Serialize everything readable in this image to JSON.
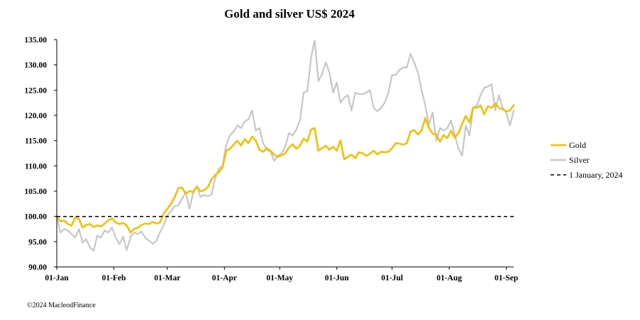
{
  "chart_data": {
    "type": "line",
    "title": "Gold and silver  US$ 2024",
    "xlabel": "",
    "ylabel": "",
    "ylim": [
      90,
      135
    ],
    "yticks": [
      90,
      95,
      100,
      105,
      110,
      115,
      120,
      125,
      130,
      135
    ],
    "ytick_labels": [
      "90.00",
      "95.00",
      "100.00",
      "105.00",
      "110.00",
      "115.00",
      "120.00",
      "125.00",
      "130.00",
      "135.00"
    ],
    "xlim_days": [
      0,
      248
    ],
    "xticks": [
      {
        "day": 0,
        "label": "01-Jan"
      },
      {
        "day": 31,
        "label": "01-Feb"
      },
      {
        "day": 60,
        "label": "01-Mar"
      },
      {
        "day": 91,
        "label": "01-Apr"
      },
      {
        "day": 121,
        "label": "01-May"
      },
      {
        "day": 152,
        "label": "01-Jun"
      },
      {
        "day": 182,
        "label": "01-Jul"
      },
      {
        "day": 213,
        "label": "01-Aug"
      },
      {
        "day": 244,
        "label": "01-Sep"
      }
    ],
    "legend_position": "right",
    "series": [
      {
        "name": "Gold",
        "color": "#f5be00",
        "dashed": false,
        "points": [
          [
            0,
            100
          ],
          [
            2,
            99
          ],
          [
            4,
            99.2
          ],
          [
            6,
            98.5
          ],
          [
            8,
            98.2
          ],
          [
            10,
            99.8
          ],
          [
            12,
            99.5
          ],
          [
            14,
            97.8
          ],
          [
            16,
            98.3
          ],
          [
            18,
            98.5
          ],
          [
            20,
            97.9
          ],
          [
            22,
            98.2
          ],
          [
            24,
            98.0
          ],
          [
            26,
            98.6
          ],
          [
            28,
            99.2
          ],
          [
            30,
            99.6
          ],
          [
            32,
            98.8
          ],
          [
            34,
            98.5
          ],
          [
            36,
            98.7
          ],
          [
            38,
            98.2
          ],
          [
            40,
            96.8
          ],
          [
            42,
            97.5
          ],
          [
            44,
            97.8
          ],
          [
            46,
            98.3
          ],
          [
            48,
            98.6
          ],
          [
            50,
            98.5
          ],
          [
            52,
            98.9
          ],
          [
            54,
            98.6
          ],
          [
            56,
            98.8
          ],
          [
            58,
            100.5
          ],
          [
            60,
            101.5
          ],
          [
            62,
            102.5
          ],
          [
            64,
            103.8
          ],
          [
            66,
            105.6
          ],
          [
            68,
            105.7
          ],
          [
            70,
            104.5
          ],
          [
            72,
            105.0
          ],
          [
            74,
            104.8
          ],
          [
            76,
            105.9
          ],
          [
            78,
            105.0
          ],
          [
            80,
            105.2
          ],
          [
            82,
            105.8
          ],
          [
            84,
            107.3
          ],
          [
            86,
            108.2
          ],
          [
            88,
            108.8
          ],
          [
            90,
            109.7
          ],
          [
            92,
            113.0
          ],
          [
            94,
            113.4
          ],
          [
            96,
            114.2
          ],
          [
            98,
            115.0
          ],
          [
            100,
            114.0
          ],
          [
            102,
            115.3
          ],
          [
            104,
            114.5
          ],
          [
            106,
            115.8
          ],
          [
            108,
            115.0
          ],
          [
            110,
            113.2
          ],
          [
            112,
            112.8
          ],
          [
            114,
            113.5
          ],
          [
            116,
            113.0
          ],
          [
            118,
            112.2
          ],
          [
            120,
            111.8
          ],
          [
            122,
            112.1
          ],
          [
            124,
            112.5
          ],
          [
            126,
            113.6
          ],
          [
            128,
            114.3
          ],
          [
            130,
            113.4
          ],
          [
            132,
            114.0
          ],
          [
            134,
            115.4
          ],
          [
            136,
            114.8
          ],
          [
            138,
            117.2
          ],
          [
            140,
            117.5
          ],
          [
            142,
            113.0
          ],
          [
            144,
            113.5
          ],
          [
            146,
            114.0
          ],
          [
            148,
            113.2
          ],
          [
            150,
            113.8
          ],
          [
            152,
            113.0
          ],
          [
            154,
            115.1
          ],
          [
            156,
            111.3
          ],
          [
            158,
            111.8
          ],
          [
            160,
            112.2
          ],
          [
            162,
            111.5
          ],
          [
            164,
            112.7
          ],
          [
            166,
            112.5
          ],
          [
            168,
            112.0
          ],
          [
            170,
            112.4
          ],
          [
            172,
            113.0
          ],
          [
            174,
            112.3
          ],
          [
            176,
            112.8
          ],
          [
            178,
            112.7
          ],
          [
            180,
            112.8
          ],
          [
            182,
            113.5
          ],
          [
            184,
            114.5
          ],
          [
            186,
            114.4
          ],
          [
            188,
            114.2
          ],
          [
            190,
            114.5
          ],
          [
            192,
            116.8
          ],
          [
            194,
            117.1
          ],
          [
            196,
            116.2
          ],
          [
            198,
            117.0
          ],
          [
            200,
            119.5
          ],
          [
            202,
            117.5
          ],
          [
            204,
            116.4
          ],
          [
            206,
            116.2
          ],
          [
            208,
            114.8
          ],
          [
            210,
            116.1
          ],
          [
            212,
            115.5
          ],
          [
            214,
            117.0
          ],
          [
            216,
            115.6
          ],
          [
            218,
            116.5
          ],
          [
            220,
            118.3
          ],
          [
            222,
            119.9
          ],
          [
            224,
            118.6
          ],
          [
            226,
            121.6
          ],
          [
            228,
            121.5
          ],
          [
            230,
            122.0
          ],
          [
            232,
            120.2
          ],
          [
            234,
            121.8
          ],
          [
            236,
            121.5
          ],
          [
            238,
            122.4
          ],
          [
            240,
            121.5
          ],
          [
            242,
            121.2
          ],
          [
            244,
            120.8
          ],
          [
            246,
            121.0
          ],
          [
            248,
            122.0
          ]
        ]
      },
      {
        "name": "Silver",
        "color": "#c6c6c6",
        "dashed": false,
        "points": [
          [
            0,
            100
          ],
          [
            2,
            96.8
          ],
          [
            4,
            97.5
          ],
          [
            6,
            97.2
          ],
          [
            8,
            96.5
          ],
          [
            10,
            95.8
          ],
          [
            12,
            97.5
          ],
          [
            14,
            94.8
          ],
          [
            16,
            95.5
          ],
          [
            18,
            93.9
          ],
          [
            20,
            93.2
          ],
          [
            22,
            96.2
          ],
          [
            24,
            95.8
          ],
          [
            26,
            97.2
          ],
          [
            28,
            96.8
          ],
          [
            30,
            97.8
          ],
          [
            32,
            95.8
          ],
          [
            34,
            94.5
          ],
          [
            36,
            96.0
          ],
          [
            38,
            93.3
          ],
          [
            40,
            95.9
          ],
          [
            42,
            96.8
          ],
          [
            44,
            96.5
          ],
          [
            46,
            97.0
          ],
          [
            48,
            95.8
          ],
          [
            50,
            95.2
          ],
          [
            52,
            94.6
          ],
          [
            54,
            95.1
          ],
          [
            56,
            96.8
          ],
          [
            58,
            98.2
          ],
          [
            60,
            100.2
          ],
          [
            62,
            101.0
          ],
          [
            64,
            102.0
          ],
          [
            66,
            102.2
          ],
          [
            68,
            103.5
          ],
          [
            70,
            104.8
          ],
          [
            72,
            101.5
          ],
          [
            74,
            104.6
          ],
          [
            76,
            106.0
          ],
          [
            78,
            103.9
          ],
          [
            80,
            104.2
          ],
          [
            82,
            104.0
          ],
          [
            84,
            104.3
          ],
          [
            86,
            107.5
          ],
          [
            88,
            109.5
          ],
          [
            90,
            110.0
          ],
          [
            92,
            114.2
          ],
          [
            94,
            116.0
          ],
          [
            96,
            116.8
          ],
          [
            98,
            118.0
          ],
          [
            100,
            117.5
          ],
          [
            102,
            118.8
          ],
          [
            104,
            119.2
          ],
          [
            106,
            121.0
          ],
          [
            108,
            117.0
          ],
          [
            110,
            117.5
          ],
          [
            112,
            114.5
          ],
          [
            114,
            113.2
          ],
          [
            116,
            112.8
          ],
          [
            118,
            111.0
          ],
          [
            120,
            112.0
          ],
          [
            122,
            112.5
          ],
          [
            124,
            113.8
          ],
          [
            126,
            116.5
          ],
          [
            128,
            116.0
          ],
          [
            130,
            117.2
          ],
          [
            132,
            119.0
          ],
          [
            134,
            124.5
          ],
          [
            136,
            124.8
          ],
          [
            138,
            131.5
          ],
          [
            140,
            134.8
          ],
          [
            142,
            126.8
          ],
          [
            144,
            128.2
          ],
          [
            146,
            130.5
          ],
          [
            148,
            128.5
          ],
          [
            150,
            124.5
          ],
          [
            152,
            126.5
          ],
          [
            154,
            122.5
          ],
          [
            156,
            123.5
          ],
          [
            158,
            124.0
          ],
          [
            160,
            121.0
          ],
          [
            162,
            124.5
          ],
          [
            164,
            124.2
          ],
          [
            166,
            124.2
          ],
          [
            168,
            124.5
          ],
          [
            170,
            125.0
          ],
          [
            172,
            121.5
          ],
          [
            174,
            120.8
          ],
          [
            176,
            121.5
          ],
          [
            178,
            122.5
          ],
          [
            180,
            124.5
          ],
          [
            182,
            128.0
          ],
          [
            184,
            128.0
          ],
          [
            186,
            129.0
          ],
          [
            188,
            129.5
          ],
          [
            190,
            129.5
          ],
          [
            192,
            132.2
          ],
          [
            194,
            130.5
          ],
          [
            196,
            128.5
          ],
          [
            198,
            125.0
          ],
          [
            200,
            122.0
          ],
          [
            202,
            118.2
          ],
          [
            204,
            120.6
          ],
          [
            206,
            115.0
          ],
          [
            208,
            117.5
          ],
          [
            210,
            117.0
          ],
          [
            212,
            117.5
          ],
          [
            214,
            119.0
          ],
          [
            216,
            116.2
          ],
          [
            218,
            113.5
          ],
          [
            220,
            112.0
          ],
          [
            222,
            118.0
          ],
          [
            224,
            116.0
          ],
          [
            226,
            121.5
          ],
          [
            228,
            122.0
          ],
          [
            230,
            124.0
          ],
          [
            232,
            125.5
          ],
          [
            234,
            125.7
          ],
          [
            236,
            126.2
          ],
          [
            238,
            121.0
          ],
          [
            240,
            124.0
          ],
          [
            242,
            121.5
          ],
          [
            244,
            120.5
          ],
          [
            246,
            118.0
          ],
          [
            248,
            121.0
          ]
        ]
      },
      {
        "name": "1 January, 2024",
        "color": "#000000",
        "dashed": true,
        "points": [
          [
            0,
            100
          ],
          [
            248,
            100
          ]
        ]
      }
    ],
    "legend": [
      "Gold",
      "Silver",
      "1 January, 2024"
    ]
  },
  "footer": {
    "copyright": "©2024 MacleodFinance"
  }
}
